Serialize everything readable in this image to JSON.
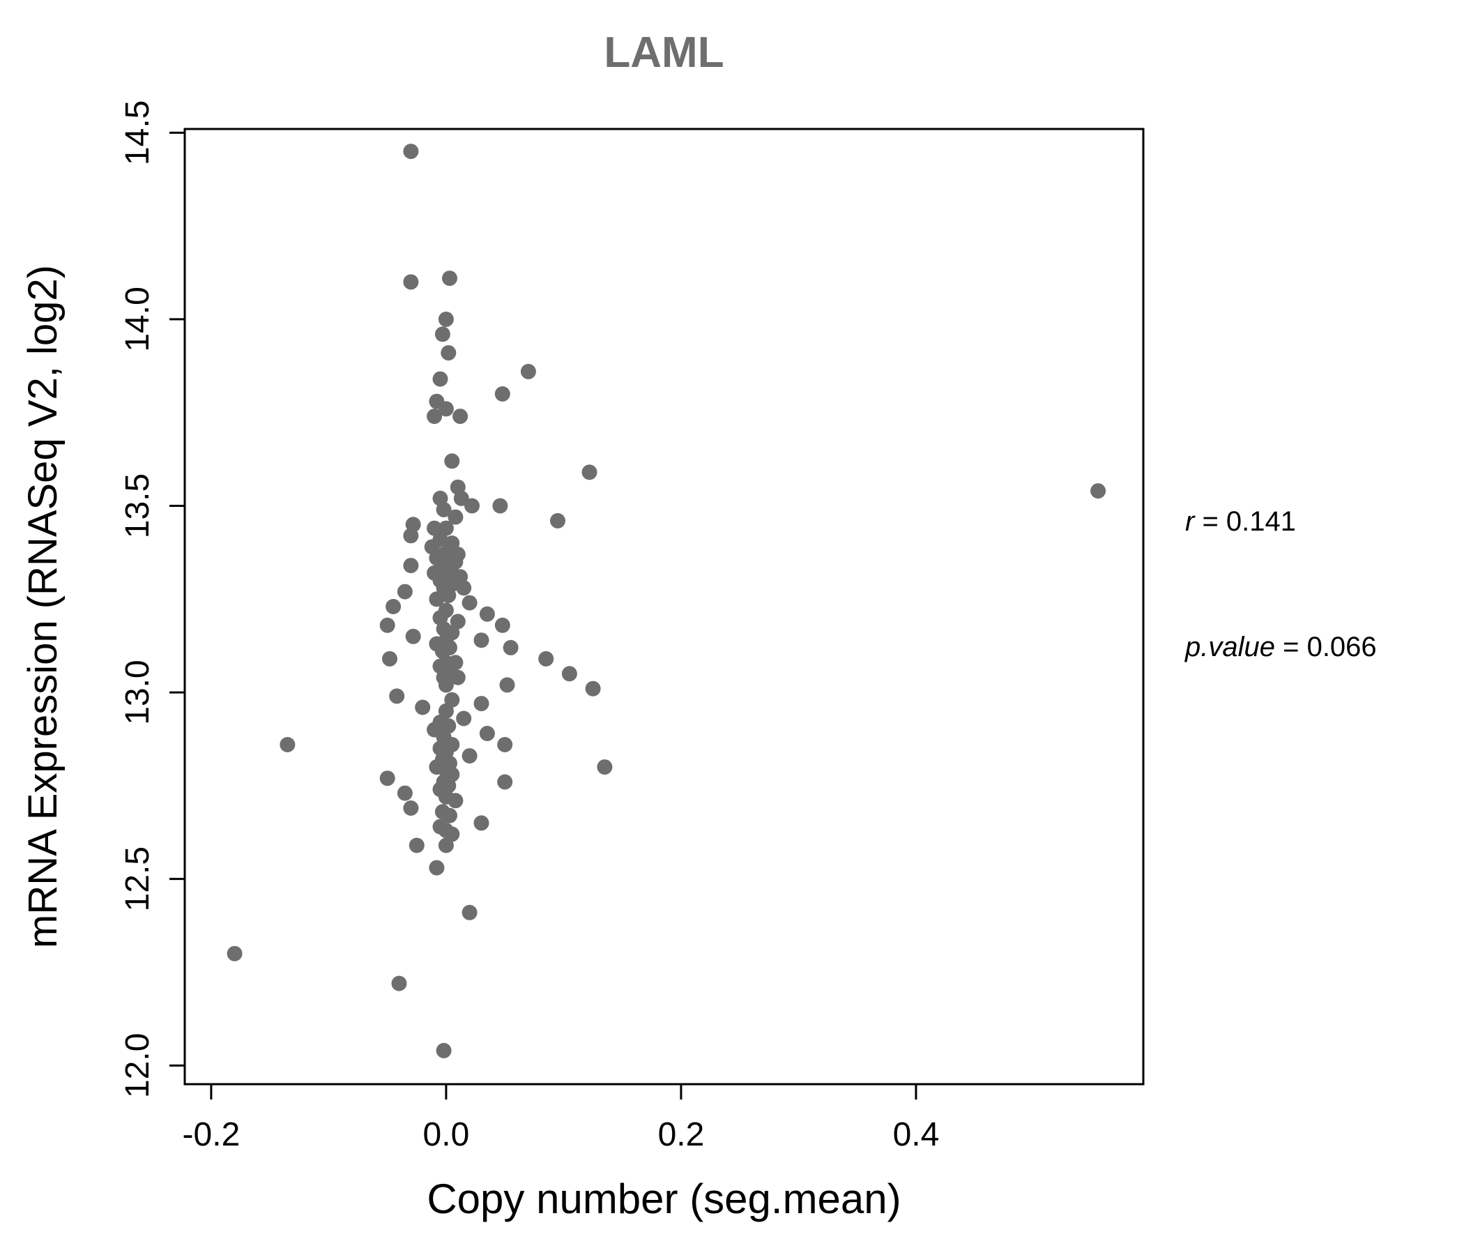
{
  "chart_data": {
    "type": "scatter",
    "title": "LAML",
    "xlabel": "Copy number (seg.mean)",
    "ylabel": "mRNA Expression (RNASeq V2, log2)",
    "xlim": [
      -0.2225,
      0.5935
    ],
    "ylim": [
      11.95,
      14.51
    ],
    "x_ticks": [
      -0.2,
      0.0,
      0.2,
      0.4
    ],
    "x_tick_labels": [
      "-0.2",
      "0.0",
      "0.2",
      "0.4"
    ],
    "y_ticks": [
      12.0,
      12.5,
      13.0,
      13.5,
      14.0,
      14.5
    ],
    "y_tick_labels": [
      "12.0",
      "12.5",
      "13.0",
      "13.5",
      "14.0",
      "14.5"
    ],
    "grid": false,
    "legend": "none",
    "point_color": "#6e6e6e",
    "title_color": "#6e6e6e",
    "annotations": {
      "r_var": "r",
      "r_rest": " = 0.141",
      "p_var": "p.value",
      "p_rest": " = 0.066"
    },
    "points": [
      [
        -0.03,
        14.45
      ],
      [
        -0.03,
        14.1
      ],
      [
        0.003,
        14.11
      ],
      [
        0.0,
        14.0
      ],
      [
        -0.003,
        13.96
      ],
      [
        0.002,
        13.91
      ],
      [
        -0.005,
        13.84
      ],
      [
        0.07,
        13.86
      ],
      [
        0.048,
        13.8
      ],
      [
        -0.008,
        13.78
      ],
      [
        0.0,
        13.76
      ],
      [
        -0.01,
        13.74
      ],
      [
        0.012,
        13.74
      ],
      [
        0.005,
        13.62
      ],
      [
        0.122,
        13.59
      ],
      [
        0.555,
        13.54
      ],
      [
        0.01,
        13.55
      ],
      [
        -0.005,
        13.52
      ],
      [
        0.013,
        13.52
      ],
      [
        0.022,
        13.5
      ],
      [
        0.046,
        13.5
      ],
      [
        -0.002,
        13.49
      ],
      [
        0.008,
        13.47
      ],
      [
        0.095,
        13.46
      ],
      [
        -0.028,
        13.45
      ],
      [
        -0.01,
        13.44
      ],
      [
        0.0,
        13.44
      ],
      [
        -0.03,
        13.42
      ],
      [
        -0.005,
        13.41
      ],
      [
        0.005,
        13.4
      ],
      [
        -0.012,
        13.39
      ],
      [
        0.003,
        13.38
      ],
      [
        -0.002,
        13.37
      ],
      [
        0.01,
        13.37
      ],
      [
        -0.008,
        13.36
      ],
      [
        0.0,
        13.35
      ],
      [
        0.008,
        13.35
      ],
      [
        -0.03,
        13.34
      ],
      [
        -0.004,
        13.33
      ],
      [
        0.004,
        13.33
      ],
      [
        -0.01,
        13.32
      ],
      [
        0.001,
        13.31
      ],
      [
        0.012,
        13.31
      ],
      [
        -0.005,
        13.3
      ],
      [
        0.005,
        13.29
      ],
      [
        -0.002,
        13.28
      ],
      [
        0.015,
        13.28
      ],
      [
        -0.035,
        13.27
      ],
      [
        0.002,
        13.26
      ],
      [
        -0.008,
        13.25
      ],
      [
        0.02,
        13.24
      ],
      [
        -0.045,
        13.23
      ],
      [
        0.0,
        13.22
      ],
      [
        0.035,
        13.21
      ],
      [
        -0.005,
        13.2
      ],
      [
        0.01,
        13.19
      ],
      [
        -0.05,
        13.18
      ],
      [
        0.048,
        13.18
      ],
      [
        -0.002,
        13.17
      ],
      [
        0.005,
        13.16
      ],
      [
        -0.028,
        13.15
      ],
      [
        0.0,
        13.14
      ],
      [
        0.03,
        13.14
      ],
      [
        -0.008,
        13.13
      ],
      [
        0.003,
        13.12
      ],
      [
        0.055,
        13.12
      ],
      [
        -0.003,
        13.11
      ],
      [
        0.085,
        13.09
      ],
      [
        -0.048,
        13.09
      ],
      [
        0.0,
        13.08
      ],
      [
        0.008,
        13.08
      ],
      [
        -0.005,
        13.07
      ],
      [
        0.003,
        13.06
      ],
      [
        0.105,
        13.05
      ],
      [
        -0.002,
        13.04
      ],
      [
        0.01,
        13.04
      ],
      [
        0.0,
        13.02
      ],
      [
        0.052,
        13.02
      ],
      [
        0.125,
        13.01
      ],
      [
        -0.042,
        12.99
      ],
      [
        0.005,
        12.98
      ],
      [
        0.03,
        12.97
      ],
      [
        -0.02,
        12.96
      ],
      [
        0.0,
        12.95
      ],
      [
        0.015,
        12.93
      ],
      [
        -0.005,
        12.92
      ],
      [
        0.002,
        12.91
      ],
      [
        -0.01,
        12.9
      ],
      [
        0.035,
        12.89
      ],
      [
        -0.002,
        12.88
      ],
      [
        -0.135,
        12.86
      ],
      [
        0.005,
        12.86
      ],
      [
        0.05,
        12.86
      ],
      [
        -0.005,
        12.85
      ],
      [
        0.0,
        12.84
      ],
      [
        0.02,
        12.83
      ],
      [
        -0.003,
        12.82
      ],
      [
        0.003,
        12.81
      ],
      [
        0.135,
        12.8
      ],
      [
        -0.008,
        12.8
      ],
      [
        0.0,
        12.79
      ],
      [
        0.005,
        12.78
      ],
      [
        -0.05,
        12.77
      ],
      [
        -0.002,
        12.76
      ],
      [
        0.05,
        12.76
      ],
      [
        0.002,
        12.75
      ],
      [
        -0.005,
        12.74
      ],
      [
        -0.035,
        12.73
      ],
      [
        0.0,
        12.72
      ],
      [
        0.008,
        12.71
      ],
      [
        -0.03,
        12.69
      ],
      [
        -0.003,
        12.68
      ],
      [
        0.003,
        12.67
      ],
      [
        0.03,
        12.65
      ],
      [
        -0.005,
        12.64
      ],
      [
        0.0,
        12.63
      ],
      [
        0.005,
        12.62
      ],
      [
        -0.025,
        12.59
      ],
      [
        0.0,
        12.59
      ],
      [
        -0.008,
        12.53
      ],
      [
        0.02,
        12.41
      ],
      [
        -0.18,
        12.3
      ],
      [
        -0.04,
        12.22
      ],
      [
        -0.002,
        12.04
      ]
    ]
  }
}
